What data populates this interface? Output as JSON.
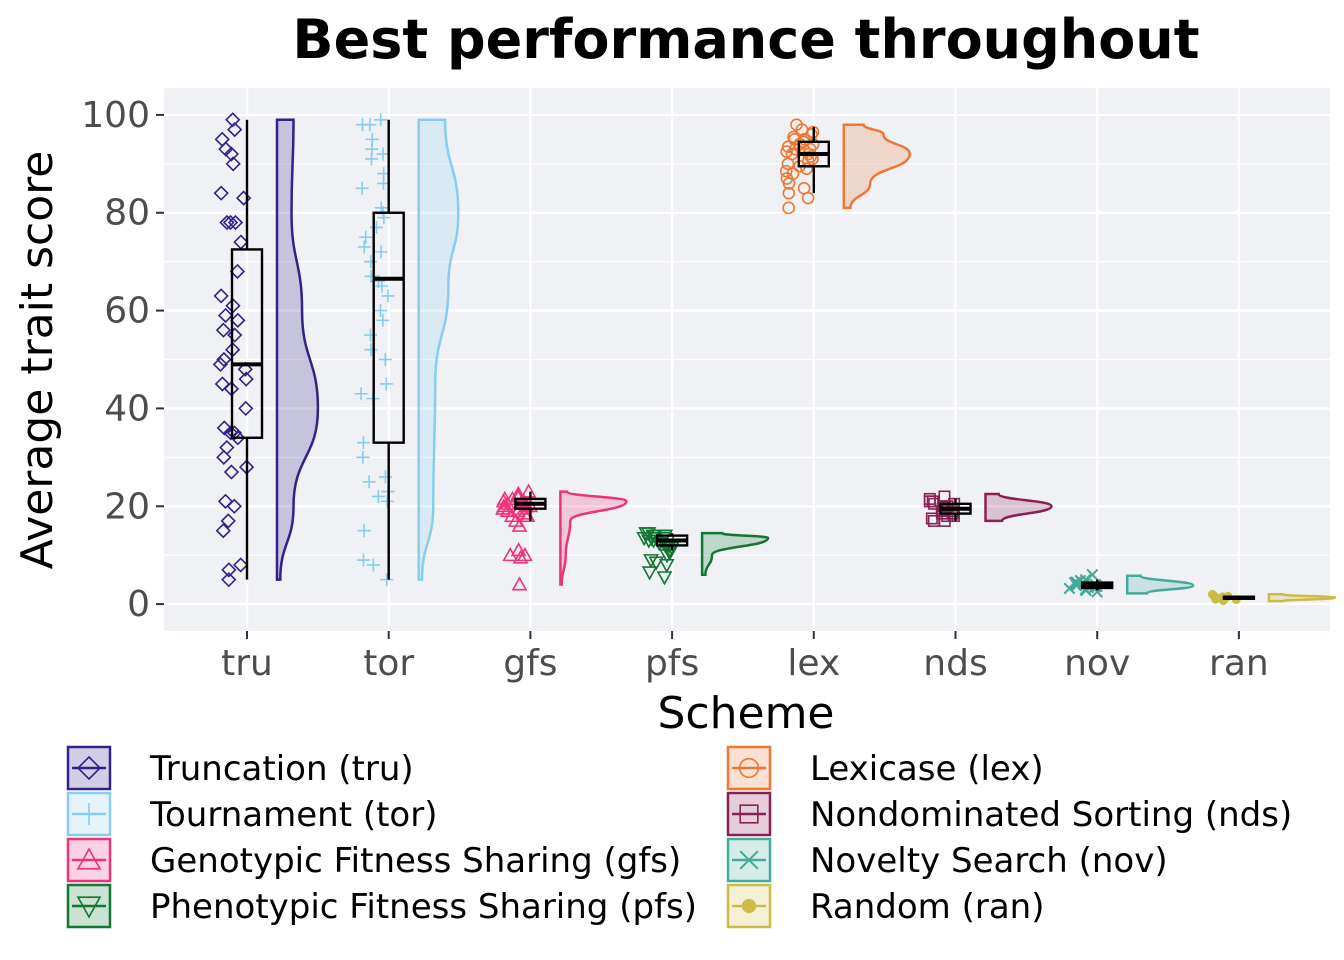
{
  "chart_data": {
    "type": "raincloud",
    "title": "Best performance throughout",
    "xlabel": "Scheme",
    "ylabel": "Average trait score",
    "ylim": [
      -5.5,
      105.5
    ],
    "yticks": [
      0,
      20,
      40,
      60,
      80,
      100
    ],
    "grid": true,
    "legend_position": "bottom",
    "categories": [
      "tru",
      "tor",
      "gfs",
      "pfs",
      "lex",
      "nds",
      "nov",
      "ran"
    ],
    "series": [
      {
        "key": "tru",
        "name": "Truncation (tru)",
        "color": "#332288",
        "marker": "diamond",
        "box": {
          "min": 5,
          "q1": 34,
          "median": 49,
          "q3": 72.5,
          "max": 99
        },
        "violin_peaks": [
          [
            5,
            0.05
          ],
          [
            20,
            0.25
          ],
          [
            40,
            0.62
          ],
          [
            60,
            0.38
          ],
          [
            80,
            0.22
          ],
          [
            99,
            0.25
          ]
        ],
        "points": [
          99,
          97,
          95,
          93,
          92,
          90,
          84,
          83,
          78,
          78,
          78,
          74,
          68,
          63,
          61,
          59,
          58,
          56,
          55,
          52,
          50,
          49,
          48,
          46,
          45,
          44,
          40,
          36,
          35,
          35,
          34,
          32,
          30,
          28,
          27,
          21,
          20,
          17,
          15,
          8,
          7,
          5
        ]
      },
      {
        "key": "tor",
        "name": "Tournament (tor)",
        "color": "#88CCEE",
        "marker": "plus",
        "box": {
          "min": 5,
          "q1": 33,
          "median": 66.5,
          "q3": 80,
          "max": 99
        },
        "violin_peaks": [
          [
            5,
            0.05
          ],
          [
            20,
            0.22
          ],
          [
            45,
            0.25
          ],
          [
            65,
            0.45
          ],
          [
            80,
            0.6
          ],
          [
            99,
            0.4
          ]
        ],
        "points": [
          99,
          98,
          98,
          95,
          93,
          92,
          91,
          88,
          86,
          85,
          81,
          80,
          79,
          77,
          75,
          73,
          72,
          70,
          67,
          66,
          65,
          63,
          60,
          58,
          55,
          52,
          50,
          45,
          43,
          42,
          33,
          30,
          26,
          25,
          23,
          22,
          21,
          15,
          9,
          8,
          5
        ]
      },
      {
        "key": "gfs",
        "name": "Genotypic Fitness Sharing (gfs)",
        "color": "#EE3377",
        "marker": "triangle-up",
        "box": {
          "min": 17,
          "q1": 19.5,
          "median": 20.5,
          "q3": 21.5,
          "max": 23
        },
        "violin_peaks": [
          [
            4,
            0.02
          ],
          [
            10,
            0.08
          ],
          [
            17,
            0.15
          ],
          [
            21,
            1.0
          ],
          [
            23,
            0.1
          ]
        ],
        "points": [
          23,
          22.5,
          22,
          22,
          21.5,
          21.5,
          21,
          21,
          21,
          20.5,
          20.5,
          20.5,
          20,
          20,
          20,
          19.5,
          19.5,
          19,
          19,
          18.5,
          18,
          18,
          17,
          16,
          11,
          10,
          10,
          9.5,
          4
        ]
      },
      {
        "key": "pfs",
        "name": "Phenotypic Fitness Sharing (pfs)",
        "color": "#117733",
        "marker": "triangle-down",
        "box": {
          "min": 11,
          "q1": 12,
          "median": 13,
          "q3": 14,
          "max": 14.5
        },
        "violin_peaks": [
          [
            6,
            0.05
          ],
          [
            10,
            0.15
          ],
          [
            13.5,
            1.0
          ],
          [
            14.5,
            0.3
          ]
        ],
        "points": [
          14.5,
          14.5,
          14,
          14,
          14,
          14,
          13.5,
          13.5,
          13.5,
          13,
          13,
          13,
          13,
          12.5,
          12.5,
          12,
          12,
          12,
          11.5,
          11,
          10.5,
          10,
          9,
          8.5,
          8,
          6.5,
          5.5
        ]
      },
      {
        "key": "lex",
        "name": "Lexicase (lex)",
        "color": "#EE7733",
        "marker": "circle",
        "box": {
          "min": 84,
          "q1": 89.5,
          "median": 92,
          "q3": 94.5,
          "max": 97.5
        },
        "violin_peaks": [
          [
            81,
            0.1
          ],
          [
            86,
            0.4
          ],
          [
            92,
            1.0
          ],
          [
            96,
            0.6
          ],
          [
            98,
            0.3
          ]
        ],
        "points": [
          98,
          97,
          96.5,
          96,
          95.5,
          95,
          95,
          94.5,
          94,
          94,
          93.5,
          93,
          93,
          92.5,
          92,
          92,
          91.5,
          91,
          90.5,
          90,
          89.5,
          89,
          88.5,
          88,
          87,
          86,
          85,
          84,
          83,
          81
        ]
      },
      {
        "key": "nds",
        "name": "Nondominated Sorting (nds)",
        "color": "#882255",
        "marker": "square",
        "box": {
          "min": 17,
          "q1": 18.5,
          "median": 19.5,
          "q3": 20.5,
          "max": 21.5
        },
        "violin_peaks": [
          [
            17,
            0.25
          ],
          [
            20,
            1.0
          ],
          [
            22.5,
            0.2
          ]
        ],
        "points": [
          22,
          21.5,
          21,
          21,
          20.5,
          20.5,
          20,
          20,
          20,
          19.5,
          19.5,
          19,
          19,
          18.5,
          18.5,
          18,
          18,
          17.5,
          17,
          17
        ]
      },
      {
        "key": "nov",
        "name": "Novelty Search (nov)",
        "color": "#44AA99",
        "marker": "cross",
        "box": {
          "min": 2.8,
          "q1": 3.3,
          "median": 3.9,
          "q3": 4.4,
          "max": 5
        },
        "violin_peaks": [
          [
            2.2,
            0.3
          ],
          [
            3.8,
            1.0
          ],
          [
            5.8,
            0.2
          ]
        ],
        "points": [
          6,
          5,
          4.8,
          4.5,
          4.4,
          4.2,
          4,
          4,
          3.9,
          3.8,
          3.6,
          3.5,
          3.4,
          3.2,
          3,
          2.8,
          2.5
        ]
      },
      {
        "key": "ran",
        "name": "Random (ran)",
        "color": "#CCBB44",
        "marker": "dot",
        "box": {
          "min": 0.9,
          "q1": 1.1,
          "median": 1.3,
          "q3": 1.5,
          "max": 1.7
        },
        "violin_peaks": [
          [
            0.6,
            0.2
          ],
          [
            1.3,
            1.0
          ],
          [
            2.0,
            0.2
          ]
        ],
        "points": [
          2,
          1.8,
          1.6,
          1.5,
          1.4,
          1.3,
          1.2,
          1.1,
          1,
          0.9,
          0.7
        ]
      }
    ]
  }
}
